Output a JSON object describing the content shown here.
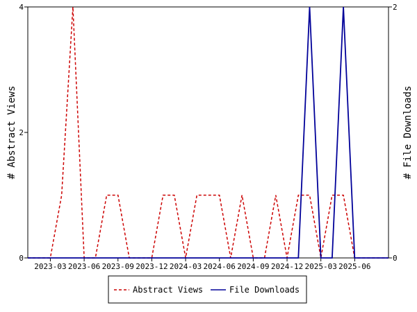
{
  "chart_data": {
    "type": "line",
    "x_tick_labels": [
      "2023-03",
      "2023-06",
      "2023-09",
      "2023-12",
      "2024-03",
      "2024-06",
      "2024-09",
      "2024-12",
      "2025-03",
      "2025-06"
    ],
    "x": [
      "2023-01",
      "2023-02",
      "2023-03",
      "2023-04",
      "2023-05",
      "2023-06",
      "2023-07",
      "2023-08",
      "2023-09",
      "2023-10",
      "2023-11",
      "2023-12",
      "2024-01",
      "2024-02",
      "2024-03",
      "2024-04",
      "2024-05",
      "2024-06",
      "2024-07",
      "2024-08",
      "2024-09",
      "2024-10",
      "2024-11",
      "2024-12",
      "2025-01",
      "2025-02",
      "2025-03",
      "2025-04",
      "2025-05",
      "2025-06",
      "2025-07",
      "2025-08",
      "2025-09"
    ],
    "left_axis": {
      "label": "# Abstract Views",
      "ylim": [
        0,
        4
      ],
      "ticks": [
        "0",
        "2",
        "4"
      ]
    },
    "right_axis": {
      "label": "# File Downloads",
      "ylim": [
        0,
        2
      ],
      "ticks": [
        "0",
        "2"
      ]
    },
    "series": [
      {
        "name": "Abstract Views",
        "axis": "left",
        "color": "#cc0000",
        "dash": true,
        "values": [
          0,
          0,
          0,
          1,
          4,
          0,
          0,
          1,
          1,
          0,
          0,
          0,
          1,
          1,
          0,
          1,
          1,
          1,
          0,
          1,
          0,
          0,
          1,
          0,
          1,
          1,
          0,
          1,
          1,
          0,
          0,
          0,
          0
        ]
      },
      {
        "name": "File Downloads",
        "axis": "right",
        "color": "#000099",
        "dash": false,
        "values": [
          0,
          0,
          0,
          0,
          0,
          0,
          0,
          0,
          0,
          0,
          0,
          0,
          0,
          0,
          0,
          0,
          0,
          0,
          0,
          0,
          0,
          0,
          0,
          0,
          0,
          2,
          0,
          0,
          2,
          0,
          0,
          0,
          0
        ]
      }
    ],
    "legend": {
      "placement": "bottom-center",
      "entries": [
        "Abstract Views",
        "File Downloads"
      ]
    },
    "grid": false
  }
}
